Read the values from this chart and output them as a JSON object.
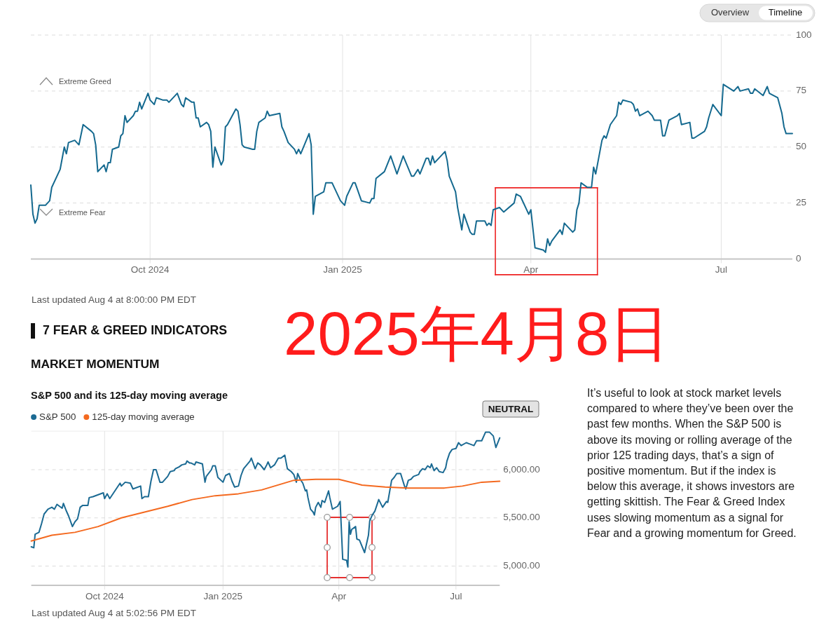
{
  "chart_data": [
    {
      "type": "line",
      "x": [
        "2024-08-05",
        "2024-08-06",
        "2024-08-07",
        "2024-08-08",
        "2024-08-09",
        "2024-08-12",
        "2024-08-14",
        "2024-08-15",
        "2024-08-19",
        "2024-08-21",
        "2024-08-22",
        "2024-08-23",
        "2024-08-26",
        "2024-08-28",
        "2024-08-30",
        "2024-09-03",
        "2024-09-04",
        "2024-09-05",
        "2024-09-06",
        "2024-09-09",
        "2024-09-10",
        "2024-09-11",
        "2024-09-12",
        "2024-09-13",
        "2024-09-16",
        "2024-09-17",
        "2024-09-18",
        "2024-09-19",
        "2024-09-20",
        "2024-09-23",
        "2024-09-24",
        "2024-09-25",
        "2024-09-26",
        "2024-09-27",
        "2024-09-30",
        "2024-10-01",
        "2024-10-02",
        "2024-10-03",
        "2024-10-04",
        "2024-10-07",
        "2024-10-09",
        "2024-10-10",
        "2024-10-14",
        "2024-10-16",
        "2024-10-17",
        "2024-10-18",
        "2024-10-21",
        "2024-10-22",
        "2024-10-23",
        "2024-10-24",
        "2024-10-25",
        "2024-10-28",
        "2024-10-29",
        "2024-10-30",
        "2024-10-31",
        "2024-11-01",
        "2024-11-04",
        "2024-11-05",
        "2024-11-06",
        "2024-11-07",
        "2024-11-11",
        "2024-11-12",
        "2024-11-13",
        "2024-11-14",
        "2024-11-15",
        "2024-11-19",
        "2024-11-20",
        "2024-11-21",
        "2024-11-22",
        "2024-11-25",
        "2024-11-26",
        "2024-11-27",
        "2024-12-02",
        "2024-12-03",
        "2024-12-04",
        "2024-12-06",
        "2024-12-09",
        "2024-12-10",
        "2024-12-11",
        "2024-12-12",
        "2024-12-16",
        "2024-12-17",
        "2024-12-18",
        "2024-12-19",
        "2024-12-23",
        "2024-12-24",
        "2024-12-27",
        "2024-12-31",
        "2025-01-02",
        "2025-01-03",
        "2025-01-06",
        "2025-01-07",
        "2025-01-10",
        "2025-01-14",
        "2025-01-15",
        "2025-01-16",
        "2025-01-17",
        "2025-01-21",
        "2025-01-24",
        "2025-01-27",
        "2025-01-30",
        "2025-02-03",
        "2025-02-04",
        "2025-02-06",
        "2025-02-07",
        "2025-02-10",
        "2025-02-11",
        "2025-02-12",
        "2025-02-13",
        "2025-02-14",
        "2025-02-19",
        "2025-02-20",
        "2025-02-21",
        "2025-02-24",
        "2025-02-25",
        "2025-02-27",
        "2025-02-28",
        "2025-03-03",
        "2025-03-04",
        "2025-03-05",
        "2025-03-06",
        "2025-03-10",
        "2025-03-11",
        "2025-03-12",
        "2025-03-13",
        "2025-03-14",
        "2025-03-17",
        "2025-03-19",
        "2025-03-24",
        "2025-03-25",
        "2025-03-27",
        "2025-03-31",
        "2025-04-01",
        "2025-04-03",
        "2025-04-07",
        "2025-04-08",
        "2025-04-09",
        "2025-04-10",
        "2025-04-11",
        "2025-04-15",
        "2025-04-16",
        "2025-04-17",
        "2025-04-21",
        "2025-04-22",
        "2025-04-23",
        "2025-04-24",
        "2025-04-25",
        "2025-04-28",
        "2025-04-29",
        "2025-04-30",
        "2025-05-01",
        "2025-05-02",
        "2025-05-05",
        "2025-05-06",
        "2025-05-07",
        "2025-05-09",
        "2025-05-12",
        "2025-05-13",
        "2025-05-14",
        "2025-05-15",
        "2025-05-19",
        "2025-05-20",
        "2025-05-21",
        "2025-05-22",
        "2025-05-23",
        "2025-05-27",
        "2025-05-29",
        "2025-05-30",
        "2025-06-02",
        "2025-06-03",
        "2025-06-04",
        "2025-06-06",
        "2025-06-10",
        "2025-06-11",
        "2025-06-12",
        "2025-06-16",
        "2025-06-17",
        "2025-06-18",
        "2025-06-23",
        "2025-06-24",
        "2025-06-25",
        "2025-06-27",
        "2025-07-01",
        "2025-07-02",
        "2025-07-07",
        "2025-07-09",
        "2025-07-10",
        "2025-07-14",
        "2025-07-15",
        "2025-07-16",
        "2025-07-17",
        "2025-07-21",
        "2025-07-23",
        "2025-07-24",
        "2025-07-28",
        "2025-07-30",
        "2025-07-31",
        "2025-08-01",
        "2025-08-04"
      ],
      "series": [
        {
          "color": "#14698f",
          "values": [
            33,
            20,
            16,
            18,
            24,
            24,
            26,
            32,
            40,
            50,
            47,
            52,
            53,
            51,
            60,
            57,
            56,
            51,
            39,
            42,
            39,
            43,
            43,
            49,
            50,
            55,
            56,
            64,
            61,
            64,
            66,
            66,
            70,
            67,
            74,
            71,
            70,
            69,
            72,
            71,
            71,
            70,
            74,
            69,
            68,
            72,
            70,
            70,
            63,
            63,
            59,
            61,
            60,
            57,
            41,
            50,
            42,
            44,
            59,
            60,
            67,
            66,
            60,
            51,
            50,
            49,
            49,
            57,
            61,
            63,
            66,
            64,
            65,
            59,
            57,
            52,
            49,
            47,
            49,
            47,
            56,
            51,
            20,
            28,
            30,
            34,
            34,
            26,
            24,
            28,
            34,
            34,
            26,
            25,
            27,
            27,
            36,
            39,
            46,
            38,
            46,
            37,
            37,
            40,
            38,
            45,
            45,
            42,
            46,
            43,
            48,
            44,
            37,
            30,
            23,
            13,
            20,
            12,
            11,
            11,
            17,
            17,
            15,
            16,
            15,
            22,
            23,
            21,
            25,
            29,
            28,
            20,
            22,
            5,
            4,
            3,
            9,
            6,
            8,
            13,
            11,
            16,
            12,
            13,
            22,
            25,
            34,
            32,
            32,
            32,
            41,
            38,
            53,
            55,
            54,
            60,
            64,
            70,
            69,
            71,
            70,
            69,
            66,
            67,
            64,
            66,
            64,
            62,
            62,
            55,
            55,
            62,
            64,
            65,
            60,
            61,
            54,
            54,
            57,
            59,
            63,
            69,
            64,
            78,
            75,
            77,
            75,
            76,
            74,
            74,
            76,
            73,
            77,
            74,
            72,
            65,
            59,
            56,
            56
          ]
        }
      ],
      "xlim": [
        "2024-08-05",
        "2025-08-04"
      ],
      "xticks": [
        {
          "value": "2024-10-01",
          "label": "Oct 2024"
        },
        {
          "value": "2025-01-01",
          "label": "Jan 2025"
        },
        {
          "value": "2025-04-01",
          "label": "Apr"
        },
        {
          "value": "2025-07-01",
          "label": "Jul"
        }
      ],
      "ylim": [
        0,
        100
      ],
      "yticks": [
        0,
        25,
        50,
        75,
        100
      ],
      "grid": true,
      "annotations": [
        "Overview",
        "Timeline",
        "Extreme Greed",
        "Extreme Fear",
        "Last updated Aug 4 at 8:00:00 PM EDT",
        "2025年4月8日"
      ]
    },
    {
      "type": "line",
      "title": "S&P 500 and its 125-day moving average",
      "x": [
        "2024-08-05",
        "2024-08-07",
        "2024-08-08",
        "2024-08-11",
        "2024-08-13",
        "2024-08-15",
        "2024-08-18",
        "2024-08-21",
        "2024-08-23",
        "2024-08-25",
        "2024-08-27",
        "2024-08-29",
        "2024-08-30",
        "2024-09-01",
        "2024-09-03",
        "2024-09-06",
        "2024-09-08",
        "2024-09-10",
        "2024-09-12",
        "2024-09-14",
        "2024-09-18",
        "2024-09-19",
        "2024-09-22",
        "2024-09-26",
        "2024-09-30",
        "2024-10-01",
        "2024-10-03",
        "2024-10-05",
        "2024-10-09",
        "2024-10-11",
        "2024-10-13",
        "2024-10-14",
        "2024-10-17",
        "2024-10-21",
        "2024-10-23",
        "2024-10-29",
        "2024-10-30",
        "2024-11-01",
        "2024-11-04",
        "2024-11-06",
        "2024-11-08",
        "2024-11-10",
        "2024-11-13",
        "2024-11-15",
        "2024-11-19",
        "2024-11-21",
        "2024-11-24",
        "2024-11-25",
        "2024-11-28",
        "2024-11-30",
        "2024-12-03",
        "2024-12-04",
        "2024-12-06",
        "2024-12-07",
        "2024-12-10",
        "2024-12-11",
        "2024-12-16",
        "2024-12-18",
        "2024-12-19",
        "2024-12-23",
        "2024-12-24",
        "2024-12-26",
        "2024-12-28",
        "2025-01-01",
        "2025-01-03",
        "2025-01-06",
        "2025-01-08",
        "2025-01-10",
        "2025-01-13",
        "2025-01-15",
        "2025-01-17",
        "2025-01-22",
        "2025-01-23",
        "2025-01-26",
        "2025-01-28",
        "2025-01-30",
        "2025-02-02",
        "2025-02-04",
        "2025-02-05",
        "2025-02-07",
        "2025-02-10",
        "2025-02-13",
        "2025-02-15",
        "2025-02-18",
        "2025-02-20",
        "2025-02-23",
        "2025-02-25",
        "2025-02-27",
        "2025-02-28",
        "2025-03-02",
        "2025-03-04",
        "2025-03-06",
        "2025-03-07",
        "2025-03-08",
        "2025-03-10",
        "2025-03-12",
        "2025-03-13",
        "2025-03-14",
        "2025-03-16",
        "2025-03-18",
        "2025-03-19",
        "2025-03-21",
        "2025-03-24",
        "2025-03-25",
        "2025-03-27",
        "2025-03-31",
        "2025-04-02",
        "2025-04-04",
        "2025-04-07",
        "2025-04-08",
        "2025-04-09",
        "2025-04-10",
        "2025-04-11",
        "2025-04-14",
        "2025-04-15",
        "2025-04-17",
        "2025-04-21",
        "2025-04-24",
        "2025-04-25",
        "2025-04-27",
        "2025-04-29",
        "2025-05-02",
        "2025-05-05",
        "2025-05-08",
        "2025-05-09",
        "2025-05-12",
        "2025-05-14",
        "2025-05-16",
        "2025-05-19",
        "2025-05-22",
        "2025-05-23",
        "2025-05-25",
        "2025-05-27",
        "2025-05-29",
        "2025-06-02",
        "2025-06-03",
        "2025-06-05",
        "2025-06-07",
        "2025-06-09",
        "2025-06-11",
        "2025-06-12",
        "2025-06-14",
        "2025-06-16",
        "2025-06-18",
        "2025-06-21",
        "2025-06-23",
        "2025-06-24",
        "2025-06-26",
        "2025-06-28",
        "2025-07-01",
        "2025-07-03",
        "2025-07-05",
        "2025-07-09",
        "2025-07-11",
        "2025-07-15",
        "2025-07-17",
        "2025-07-21",
        "2025-07-24",
        "2025-07-27",
        "2025-07-30",
        "2025-08-01",
        "2025-08-04"
      ],
      "series": [
        {
          "name": "S&P 500",
          "color": "#1b6a93",
          "values": [
            5200,
            5190,
            5330,
            5350,
            5440,
            5540,
            5590,
            5610,
            5590,
            5640,
            5620,
            5600,
            5650,
            5580,
            5520,
            5410,
            5460,
            5490,
            5610,
            5630,
            5630,
            5710,
            5720,
            5740,
            5760,
            5700,
            5750,
            5700,
            5780,
            5820,
            5860,
            5830,
            5870,
            5860,
            5800,
            5830,
            5700,
            5720,
            5720,
            5880,
            6000,
            6000,
            5870,
            5870,
            5930,
            5980,
            5990,
            6010,
            6030,
            6050,
            6060,
            6090,
            6070,
            6070,
            6050,
            6080,
            6060,
            5870,
            5930,
            6000,
            6040,
            6040,
            5920,
            5870,
            5940,
            5960,
            5880,
            5820,
            5830,
            5940,
            6010,
            6090,
            6120,
            6010,
            6070,
            6050,
            6000,
            6050,
            6080,
            6020,
            6050,
            6120,
            6120,
            6150,
            6010,
            5980,
            5950,
            5870,
            5960,
            5900,
            5860,
            5780,
            5790,
            5710,
            5590,
            5560,
            5530,
            5610,
            5660,
            5610,
            5680,
            5660,
            5780,
            5710,
            5590,
            5620,
            5670,
            5070,
            5060,
            4990,
            5460,
            5330,
            5380,
            5410,
            5280,
            5270,
            5140,
            5320,
            5470,
            5530,
            5570,
            5690,
            5610,
            5670,
            5660,
            5890,
            5920,
            5960,
            5960,
            5830,
            5800,
            5890,
            5900,
            5930,
            5950,
            5980,
            6010,
            6000,
            6040,
            6020,
            6060,
            5990,
            6020,
            5980,
            5970,
            6020,
            6090,
            6170,
            6210,
            6220,
            6280,
            6250,
            6280,
            6270,
            6250,
            6300,
            6300,
            6390,
            6390,
            6350,
            6230,
            6330
          ]
        },
        {
          "name": "125-day moving average",
          "color": "#f4691f",
          "x": [
            "2024-08-05",
            "2024-08-21",
            "2024-09-08",
            "2024-09-26",
            "2024-10-14",
            "2024-11-01",
            "2024-11-19",
            "2024-12-08",
            "2024-12-26",
            "2025-01-13",
            "2025-01-31",
            "2025-02-25",
            "2025-03-14",
            "2025-04-01",
            "2025-04-19",
            "2025-05-07",
            "2025-05-25",
            "2025-06-22",
            "2025-07-06",
            "2025-07-21",
            "2025-08-04"
          ],
          "values": [
            5260,
            5320,
            5350,
            5410,
            5500,
            5560,
            5620,
            5690,
            5730,
            5750,
            5790,
            5890,
            5900,
            5900,
            5840,
            5820,
            5810,
            5810,
            5830,
            5870,
            5880
          ]
        }
      ],
      "xlim": [
        "2024-08-05",
        "2025-08-04"
      ],
      "xticks": [
        {
          "value": "2024-10-01",
          "label": "Oct 2024"
        },
        {
          "value": "2025-01-01",
          "label": "Jan 2025"
        },
        {
          "value": "2025-04-01",
          "label": "Apr"
        },
        {
          "value": "2025-07-01",
          "label": "Jul"
        }
      ],
      "ylim": [
        4800,
        6400
      ],
      "yticks": [
        {
          "value": 5000,
          "label": "5,000.00"
        },
        {
          "value": 5500,
          "label": "5,500.00"
        },
        {
          "value": 6000,
          "label": "6,000.00"
        }
      ],
      "grid": true,
      "legend": "top left",
      "annotations": [
        "7 FEAR & GREED INDICATORS",
        "MARKET MOMENTUM",
        "NEUTRAL",
        "Last updated Aug 4 at 5:02:56 PM EDT"
      ]
    },
    {
      "type": "other",
      "annotations": [
        "It’s useful to look at stock market levels compared to where they’ve been over the past few months. When the S&P 500 is above its moving or rolling average of the prior 125 trading days, that’s a sign of positive momentum. But if the index is below this average, it shows investors are getting skittish. The Fear & Greed Index uses slowing momentum as a signal for Fear and a growing momentum for Greed."
      ]
    }
  ]
}
